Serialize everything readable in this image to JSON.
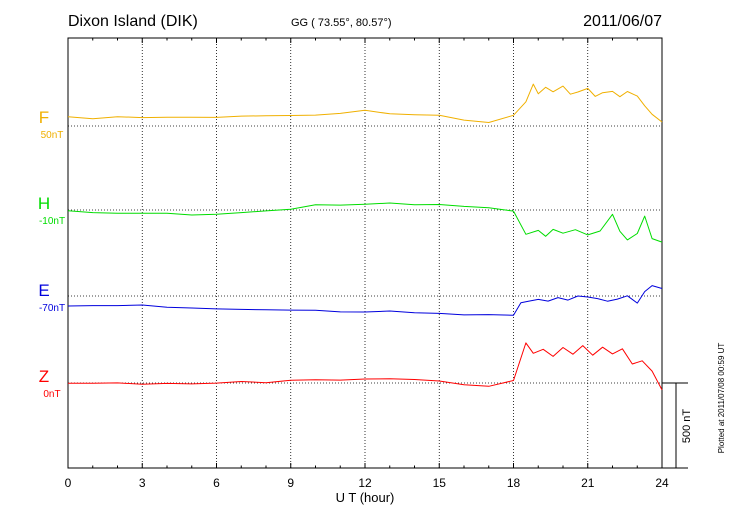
{
  "header": {
    "station": "Dixon Island (DIK)",
    "coords": "GG ( 73.55°,  80.57°)",
    "date": "2011/06/07"
  },
  "footer": {
    "plotted": "Plotted at 2011/07/08 00:59 UT"
  },
  "chart_data": {
    "type": "line",
    "xlabel": "U T (hour)",
    "xlim": [
      0,
      24
    ],
    "xticks": [
      0,
      3,
      6,
      9,
      12,
      15,
      18,
      21,
      24
    ],
    "scale_bar": "500 nT",
    "grid": true,
    "series": [
      {
        "name": "F",
        "baseline": "50nT",
        "color": "#f0b000",
        "x": [
          0,
          1,
          2,
          3,
          4,
          5,
          6,
          7,
          8,
          9,
          10,
          11,
          12,
          13,
          14,
          15,
          16,
          17,
          18,
          18.5,
          18.8,
          19,
          19.3,
          19.6,
          20,
          20.3,
          20.6,
          21,
          21.3,
          21.6,
          22,
          22.3,
          22.6,
          23,
          23.3,
          23.6,
          24
        ],
        "values": [
          48,
          48,
          49,
          50,
          50,
          51,
          52,
          54,
          58,
          62,
          70,
          78,
          88,
          78,
          70,
          62,
          40,
          20,
          65,
          140,
          250,
          190,
          230,
          200,
          230,
          185,
          200,
          215,
          170,
          195,
          210,
          175,
          200,
          175,
          115,
          70,
          30
        ]
      },
      {
        "name": "H",
        "baseline": "-10nT",
        "color": "#00dd00",
        "x": [
          0,
          1,
          2,
          3,
          4,
          5,
          6,
          7,
          8,
          9,
          10,
          11,
          12,
          13,
          14,
          15,
          16,
          17,
          18,
          18.5,
          19,
          19.3,
          19.6,
          20,
          20.5,
          21,
          21.5,
          22,
          22.3,
          22.6,
          23,
          23.3,
          23.6,
          24
        ],
        "values": [
          -8,
          -12,
          -18,
          -20,
          -22,
          -25,
          -22,
          -15,
          -5,
          5,
          25,
          30,
          35,
          40,
          35,
          30,
          20,
          10,
          0,
          -140,
          -115,
          -150,
          -120,
          -135,
          -110,
          -150,
          -120,
          -30,
          -120,
          -180,
          -140,
          -35,
          -170,
          -190
        ]
      },
      {
        "name": "E",
        "baseline": "-70nT",
        "color": "#0000dd",
        "x": [
          0,
          1,
          2,
          3,
          4,
          5,
          6,
          7,
          8,
          9,
          10,
          11,
          12,
          13,
          14,
          15,
          16,
          17,
          18,
          18.3,
          18.6,
          19,
          19.4,
          19.8,
          20.2,
          20.6,
          21,
          21.4,
          21.8,
          22.2,
          22.6,
          23,
          23.3,
          23.6,
          24
        ],
        "values": [
          -65,
          -62,
          -58,
          -55,
          -60,
          -70,
          -75,
          -78,
          -80,
          -82,
          -85,
          -88,
          -90,
          -92,
          -95,
          -100,
          -105,
          -110,
          -108,
          -40,
          -30,
          -20,
          -35,
          -15,
          -25,
          5,
          -5,
          -20,
          -30,
          -15,
          -5,
          -40,
          20,
          60,
          40
        ]
      },
      {
        "name": "Z",
        "baseline": "0nT",
        "color": "#ff0000",
        "x": [
          0,
          1,
          2,
          3,
          4,
          5,
          6,
          7,
          8,
          9,
          10,
          11,
          12,
          13,
          14,
          15,
          16,
          17,
          18,
          18.5,
          18.8,
          19.2,
          19.6,
          20,
          20.4,
          20.8,
          21.2,
          21.6,
          22,
          22.4,
          22.8,
          23.2,
          23.6,
          24
        ],
        "values": [
          -5,
          -3,
          -2,
          -2,
          -1,
          0,
          2,
          4,
          6,
          10,
          16,
          20,
          25,
          20,
          15,
          8,
          -10,
          -20,
          10,
          230,
          170,
          200,
          160,
          205,
          165,
          215,
          170,
          205,
          175,
          200,
          115,
          135,
          70,
          -45
        ]
      }
    ]
  }
}
